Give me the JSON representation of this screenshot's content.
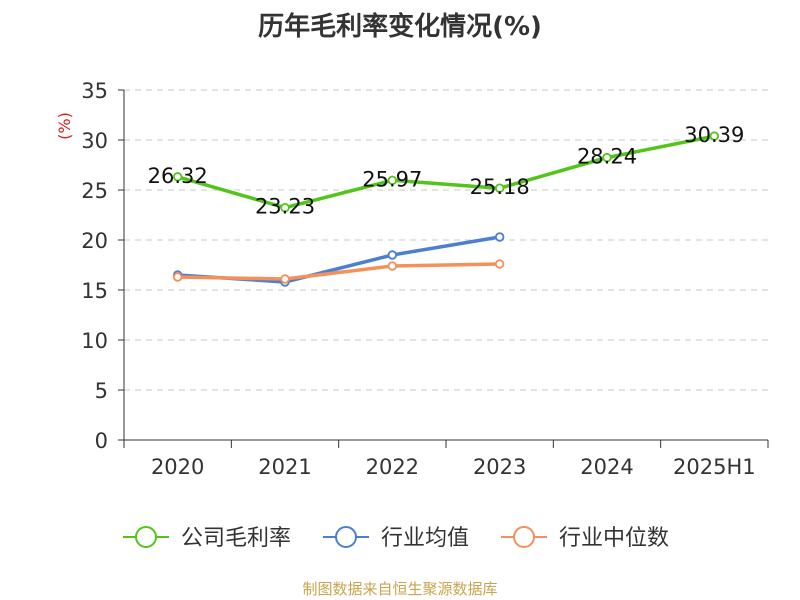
{
  "chart_data": {
    "type": "line",
    "title": "历年毛利率变化情况(%)",
    "ylabel": "(%)",
    "xlabel": "",
    "categories": [
      "2020",
      "2021",
      "2022",
      "2023",
      "2024",
      "2025H1"
    ],
    "ylim": [
      0,
      35
    ],
    "yticks": [
      0,
      5,
      10,
      15,
      20,
      25,
      30,
      35
    ],
    "grid": true,
    "legend_position": "bottom",
    "series": [
      {
        "name": "公司毛利率",
        "color": "#52c41a",
        "values": [
          26.32,
          23.23,
          25.97,
          25.18,
          28.24,
          30.39
        ],
        "show_labels": true
      },
      {
        "name": "行业均值",
        "color": "#4a7fd4",
        "values": [
          16.5,
          15.8,
          18.5,
          20.3,
          null,
          null
        ],
        "show_labels": false
      },
      {
        "name": "行业中位数",
        "color": "#f4905a",
        "values": [
          16.3,
          16.1,
          17.4,
          17.6,
          null,
          null
        ],
        "show_labels": false
      }
    ]
  },
  "footer": {
    "source": "制图数据来自恒生聚源数据库"
  }
}
